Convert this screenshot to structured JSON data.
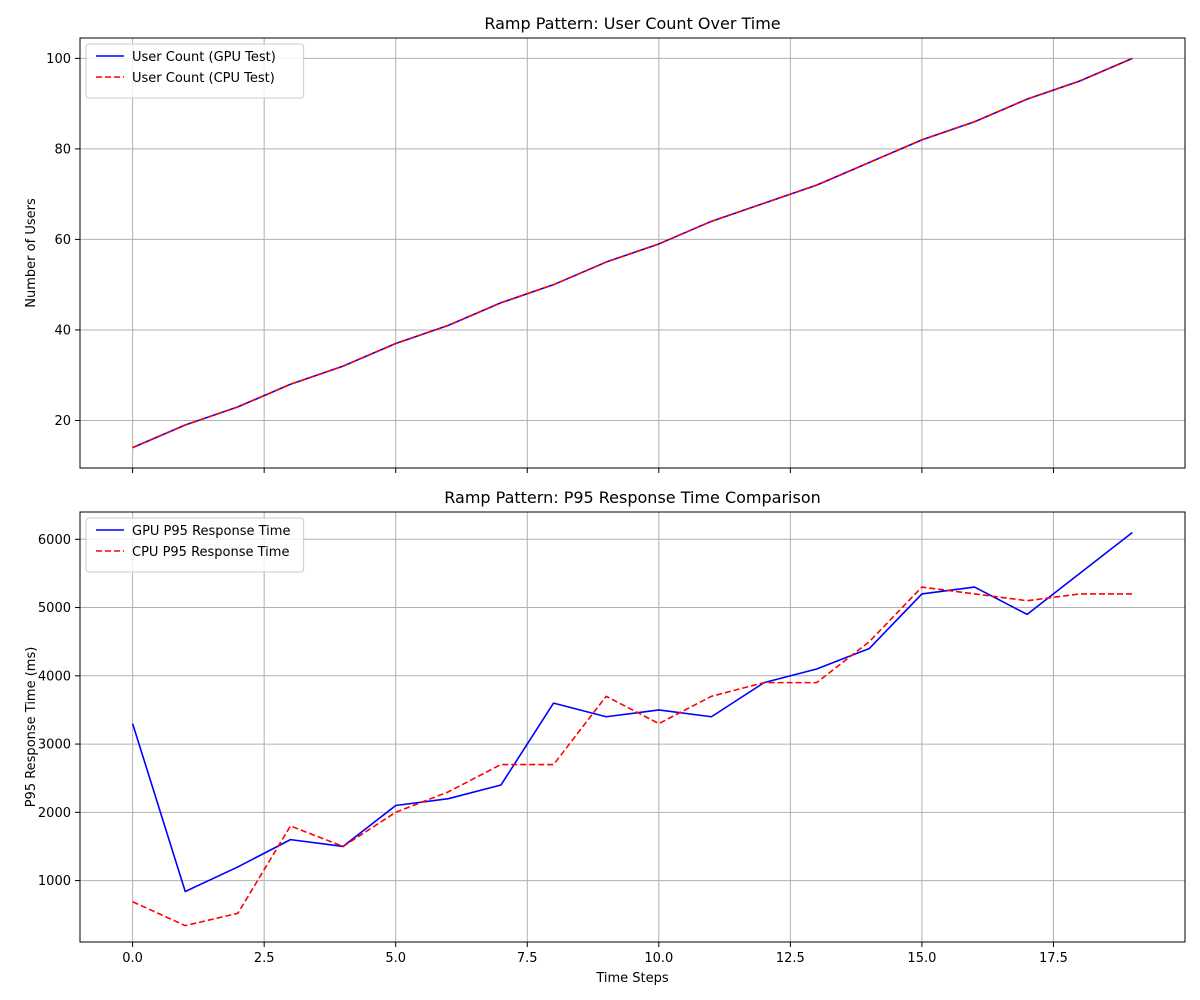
{
  "colors": {
    "gpu": "#0000ff",
    "cpu": "#ff0000"
  },
  "chart_data": [
    {
      "type": "line",
      "title": "Ramp Pattern: User Count Over Time",
      "xlabel": "",
      "ylabel": "Number of Users",
      "xlim": [
        -1.0,
        20.0
      ],
      "ylim": [
        9.5,
        104.5
      ],
      "xticks": [
        0.0,
        2.5,
        5.0,
        7.5,
        10.0,
        12.5,
        15.0,
        17.5
      ],
      "xtick_labels_visible": false,
      "yticks": [
        20,
        40,
        60,
        80,
        100
      ],
      "ytick_labels": [
        "20",
        "40",
        "60",
        "80",
        "100"
      ],
      "grid": true,
      "legend_position": "top-left",
      "x": [
        0,
        1,
        2,
        3,
        4,
        5,
        6,
        7,
        8,
        9,
        10,
        11,
        12,
        13,
        14,
        15,
        16,
        17,
        18,
        19
      ],
      "series": [
        {
          "name": "User Count (GPU Test)",
          "style": "solid",
          "color": "#0000ff",
          "values": [
            14,
            19,
            23,
            28,
            32,
            37,
            41,
            46,
            50,
            55,
            59,
            64,
            68,
            72,
            77,
            82,
            86,
            91,
            95,
            100
          ]
        },
        {
          "name": "User Count (CPU Test)",
          "style": "dashed",
          "color": "#ff0000",
          "values": [
            14,
            19,
            23,
            28,
            32,
            37,
            41,
            46,
            50,
            55,
            59,
            64,
            68,
            72,
            77,
            82,
            86,
            91,
            95,
            100
          ]
        }
      ]
    },
    {
      "type": "line",
      "title": "Ramp Pattern: P95 Response Time Comparison",
      "xlabel": "Time Steps",
      "ylabel": "P95 Response Time (ms)",
      "xlim": [
        -1.0,
        20.0
      ],
      "ylim": [
        100,
        6400
      ],
      "xticks": [
        0.0,
        2.5,
        5.0,
        7.5,
        10.0,
        12.5,
        15.0,
        17.5
      ],
      "xtick_labels": [
        "0.0",
        "2.5",
        "5.0",
        "7.5",
        "10.0",
        "12.5",
        "15.0",
        "17.5"
      ],
      "xtick_labels_visible": true,
      "yticks": [
        1000,
        2000,
        3000,
        4000,
        5000,
        6000
      ],
      "ytick_labels": [
        "1000",
        "2000",
        "3000",
        "4000",
        "5000",
        "6000"
      ],
      "grid": true,
      "legend_position": "top-left",
      "x": [
        0,
        1,
        2,
        3,
        4,
        5,
        6,
        7,
        8,
        9,
        10,
        11,
        12,
        13,
        14,
        15,
        16,
        17,
        18,
        19
      ],
      "series": [
        {
          "name": "GPU P95 Response Time",
          "style": "solid",
          "color": "#0000ff",
          "values": [
            3300,
            840,
            1200,
            1600,
            1500,
            2100,
            2200,
            2400,
            3600,
            3400,
            3500,
            3400,
            3900,
            4100,
            4400,
            5200,
            5300,
            4900,
            5500,
            6100
          ]
        },
        {
          "name": "CPU P95 Response Time",
          "style": "dashed",
          "color": "#ff0000",
          "values": [
            690,
            340,
            520,
            1800,
            1500,
            2000,
            2300,
            2700,
            2700,
            3700,
            3300,
            3700,
            3900,
            3900,
            4500,
            5300,
            5200,
            5100,
            5200,
            5200
          ]
        }
      ]
    }
  ]
}
